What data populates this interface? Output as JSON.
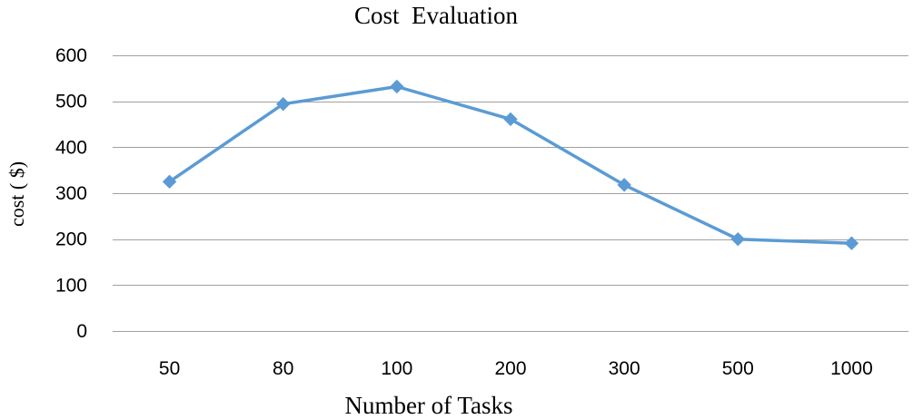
{
  "chart_data": {
    "type": "line",
    "title": "Cost  Evaluation",
    "xlabel": "Number of Tasks",
    "ylabel": "cost ( $)",
    "categories": [
      "50",
      "80",
      "100",
      "200",
      "300",
      "500",
      "1000"
    ],
    "series": [
      {
        "values": [
          325,
          494,
          532,
          461,
          318,
          200,
          191
        ],
        "color": "#5B9BD5",
        "marker": "diamond"
      }
    ],
    "ylim": [
      0,
      600
    ],
    "yticks": [
      0,
      100,
      200,
      300,
      400,
      500,
      600
    ],
    "grid": "horizontal",
    "gridColor": "#A0A0A0"
  }
}
